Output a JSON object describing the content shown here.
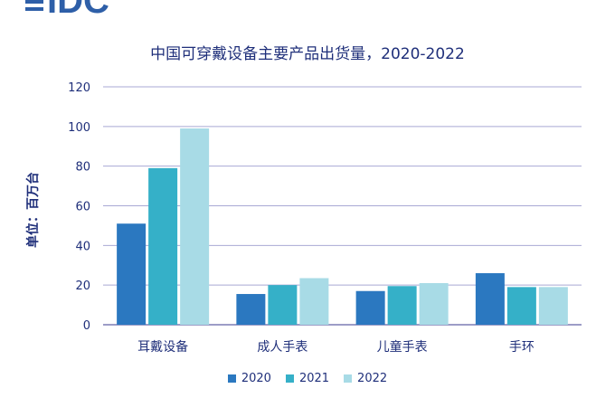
{
  "brand": {
    "logo_text": "IDC",
    "logo_color": "#2e5fa8"
  },
  "chart_data": {
    "type": "bar",
    "title": "中国可穿戴设备主要产品出货量，2020-2022",
    "ylabel": "单位：百万台",
    "xlabel": "",
    "ylim": [
      0,
      120
    ],
    "yticks": [
      "0",
      "20",
      "40",
      "60",
      "80",
      "100",
      "120"
    ],
    "grid": true,
    "legend_position": "bottom",
    "categories": [
      "耳戴设备",
      "成人手表",
      "儿童手表",
      "手环"
    ],
    "series": [
      {
        "name": "2020",
        "color": "#2b78c0",
        "values": [
          51,
          15.5,
          17,
          26
        ]
      },
      {
        "name": "2021",
        "color": "#35b0c8",
        "values": [
          79,
          20,
          19.5,
          19
        ]
      },
      {
        "name": "2022",
        "color": "#a8dbe6",
        "values": [
          99,
          23.5,
          21,
          19
        ]
      }
    ]
  }
}
